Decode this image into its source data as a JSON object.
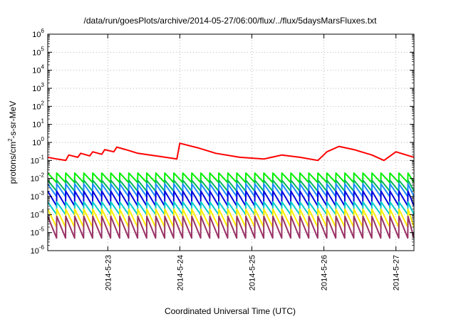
{
  "chart_data": {
    "type": "line",
    "title": "/data/run/goesPlots/archive/2014-05-27/06:00/flux/../flux/5daysMarsFluxes.txt",
    "xlabel": "Coordinated Universal Time (UTC)",
    "ylabel": {
      "base": "protons/cm",
      "superscript": "2",
      "rest": "-s-sr-MeV"
    },
    "x_axis": {
      "type": "date",
      "range": [
        "2014-05-22T04:00",
        "2014-05-27T06:00"
      ],
      "ticks": [
        "2014-5-23",
        "2014-5-24",
        "2014-5-25",
        "2014-5-26",
        "2014-5-27"
      ],
      "grid": true
    },
    "y_axis": {
      "scale": "log",
      "range": [
        1e-06,
        1000000.0
      ],
      "tick_exponents": [
        -6,
        -5,
        -4,
        -3,
        -2,
        -1,
        0,
        1,
        2,
        3,
        4,
        5,
        6
      ],
      "tick_base": "10",
      "grid": true
    },
    "series": [
      {
        "color": "#ff0000",
        "pattern": "sawtooth",
        "points": [
          [
            "2014-05-22T04:00",
            0.15
          ],
          [
            "2014-05-22T07:00",
            0.12
          ],
          [
            "2014-05-22T10:00",
            0.1
          ],
          [
            "2014-05-22T11:00",
            0.2
          ],
          [
            "2014-05-22T14:00",
            0.15
          ],
          [
            "2014-05-22T15:00",
            0.25
          ],
          [
            "2014-05-22T18:00",
            0.18
          ],
          [
            "2014-05-22T19:00",
            0.3
          ],
          [
            "2014-05-22T22:00",
            0.22
          ],
          [
            "2014-05-22T23:00",
            0.4
          ],
          [
            "2014-05-23T02:00",
            0.3
          ],
          [
            "2014-05-23T03:00",
            0.55
          ],
          [
            "2014-05-23T06:00",
            0.4
          ],
          [
            "2014-05-23T10:00",
            0.25
          ],
          [
            "2014-05-23T16:00",
            0.18
          ],
          [
            "2014-05-23T23:00",
            0.12
          ],
          [
            "2014-05-24T00:00",
            0.9
          ],
          [
            "2014-05-24T06:00",
            0.5
          ],
          [
            "2014-05-24T12:00",
            0.25
          ],
          [
            "2014-05-24T20:00",
            0.15
          ],
          [
            "2014-05-25T04:00",
            0.12
          ],
          [
            "2014-05-25T10:00",
            0.2
          ],
          [
            "2014-05-25T16:00",
            0.15
          ],
          [
            "2014-05-25T22:00",
            0.1
          ],
          [
            "2014-05-26T01:00",
            0.3
          ],
          [
            "2014-05-26T05:00",
            0.6
          ],
          [
            "2014-05-26T10:00",
            0.4
          ],
          [
            "2014-05-26T16:00",
            0.2
          ],
          [
            "2014-05-26T20:00",
            0.1
          ],
          [
            "2014-05-27T00:00",
            0.3
          ],
          [
            "2014-05-27T06:00",
            0.15
          ]
        ]
      },
      {
        "color": "#00ee00",
        "pattern": "sawtooth",
        "peak": 0.02,
        "trough": 0.006
      },
      {
        "color": "#00bb55",
        "pattern": "sawtooth",
        "peak": 0.008,
        "trough": 0.002
      },
      {
        "color": "#1a8cff",
        "pattern": "sawtooth",
        "peak": 0.005,
        "trough": 0.001
      },
      {
        "color": "#0000dd",
        "pattern": "sawtooth",
        "peak": 0.002,
        "trough": 0.0003
      },
      {
        "color": "#00cccc",
        "pattern": "sawtooth",
        "peak": 0.0005,
        "trough": 0.0001
      },
      {
        "color": "#ffee00",
        "pattern": "sawtooth",
        "peak": 0.0002,
        "trough": 2e-05
      },
      {
        "color": "#993366",
        "pattern": "sawtooth",
        "peak": 8e-05,
        "trough": 5e-06
      }
    ]
  }
}
